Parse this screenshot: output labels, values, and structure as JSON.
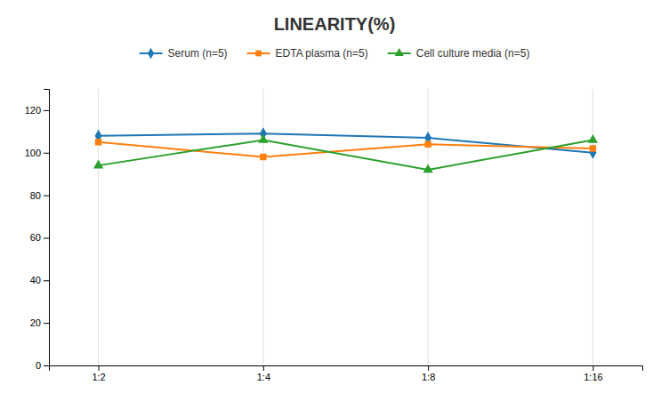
{
  "chart_data": {
    "type": "line",
    "title": "LINEARITY(%)",
    "categories": [
      "1:2",
      "1:4",
      "1:8",
      "1:16"
    ],
    "series": [
      {
        "name": "Serum (n=5)",
        "marker": "diamond",
        "values": [
          108,
          109,
          107,
          100
        ]
      },
      {
        "name": "EDTA plasma (n=5)",
        "marker": "square",
        "values": [
          105,
          98,
          104,
          102
        ]
      },
      {
        "name": "Cell culture media (n=5)",
        "marker": "triangle",
        "values": [
          94,
          106,
          92,
          106
        ]
      }
    ],
    "ylim": [
      0,
      130
    ],
    "yticks": [
      0,
      20,
      40,
      60,
      80,
      100,
      120
    ],
    "grid": "x",
    "legend": "top"
  }
}
